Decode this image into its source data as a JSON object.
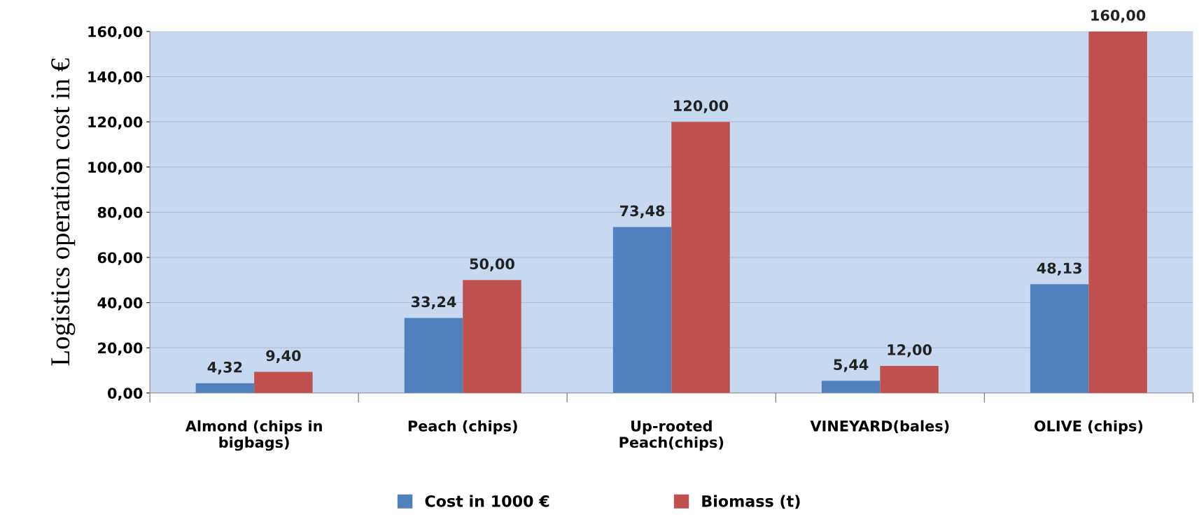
{
  "chart_data": {
    "type": "bar",
    "ylabel": "Logistics operation cost in €",
    "categories": [
      "Almond (chips in\nbigbags)",
      "Peach (chips)",
      "Up-rooted\nPeach(chips)",
      "VINEYARD(bales)",
      "OLIVE (chips)"
    ],
    "series": [
      {
        "name": "Cost in 1000 €",
        "color": "#4f81bd",
        "values": [
          4.32,
          33.24,
          73.48,
          5.44,
          48.13
        ],
        "value_labels": [
          "4,32",
          "33,24",
          "73,48",
          "5,44",
          "48,13"
        ]
      },
      {
        "name": "Biomass (t)",
        "color": "#c0504d",
        "values": [
          9.4,
          50.0,
          120.0,
          12.0,
          160.0
        ],
        "value_labels": [
          "9,40",
          "50,00",
          "120,00",
          "12,00",
          "160,00"
        ]
      }
    ],
    "ylim": [
      0,
      160
    ],
    "yticks": [
      {
        "value": 0,
        "label": "0,00"
      },
      {
        "value": 20,
        "label": "20,00"
      },
      {
        "value": 40,
        "label": "40,00"
      },
      {
        "value": 60,
        "label": "60,00"
      },
      {
        "value": 80,
        "label": "80,00"
      },
      {
        "value": 100,
        "label": "100,00"
      },
      {
        "value": 120,
        "label": "120,00"
      },
      {
        "value": 140,
        "label": "140,00"
      },
      {
        "value": 160,
        "label": "160,00"
      }
    ],
    "grid": "y",
    "legend": "bottom"
  }
}
